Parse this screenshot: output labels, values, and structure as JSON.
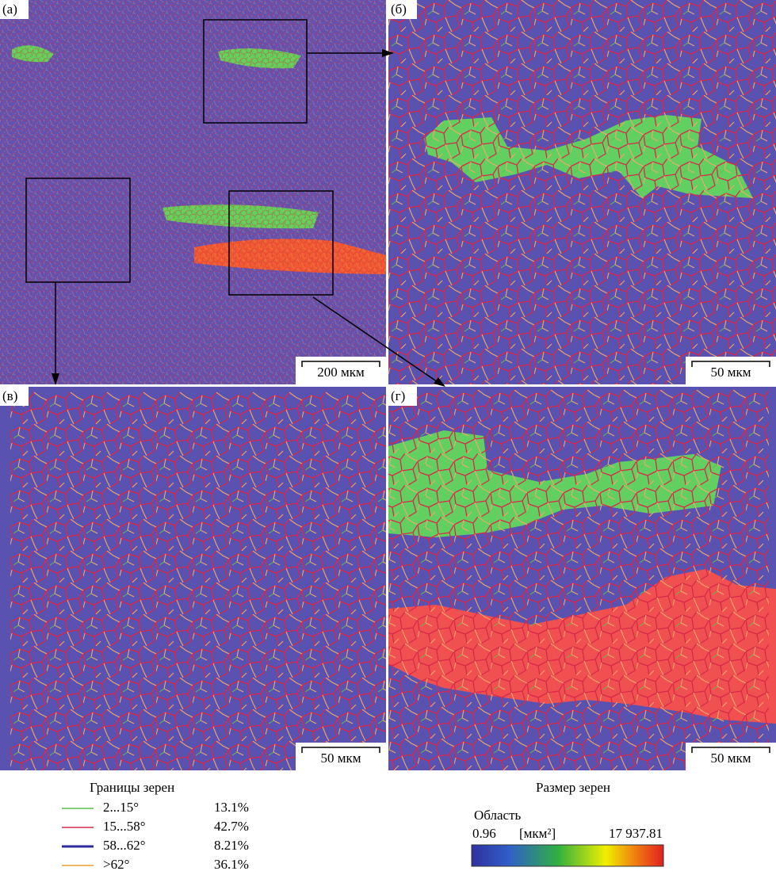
{
  "panels": [
    {
      "label": "(а)",
      "scale_bar": "200 мкм"
    },
    {
      "label": "(б)",
      "scale_bar": "50 мкм"
    },
    {
      "label": "(в)",
      "scale_bar": "50 мкм"
    },
    {
      "label": "(г)",
      "scale_bar": "50 мкм"
    }
  ],
  "boundary_legend": {
    "title": "Границы зерен",
    "entries": [
      {
        "label": "2...15°",
        "percent": "13.1%",
        "color": "#5cc04a"
      },
      {
        "label": "15...58°",
        "percent": "42.7%",
        "color": "#d8284a"
      },
      {
        "label": "58...62°",
        "percent": "8.21%",
        "color": "#2c2c9c"
      },
      {
        "label": ">62°",
        "percent": "36.1%",
        "color": "#f0a030"
      }
    ]
  },
  "size_legend": {
    "title": "Размер зерен",
    "quantity": "Область",
    "min": "0.96",
    "unit": "[мкм²]",
    "max": "17 937.81"
  }
}
